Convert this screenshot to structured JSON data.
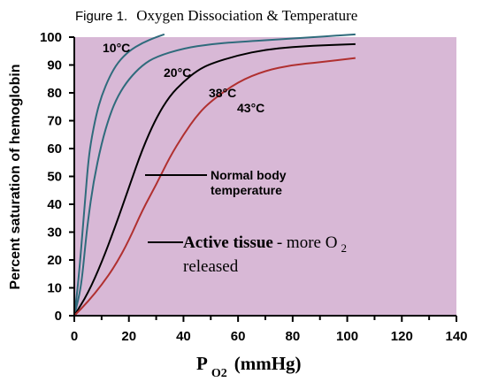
{
  "figure": {
    "title_prefix": "Figure 1.",
    "title_rest": "Oxygen Dissociation & Temperature"
  },
  "chart_data": {
    "type": "line",
    "title": "Figure 1. Oxygen Dissociation & Temperature",
    "ylabel": "Percent saturation of hemoglobin",
    "xlabel_main": "P",
    "xlabel_sub": "O2",
    "xlabel_suffix": "(mmHg)",
    "xlim": [
      0,
      140
    ],
    "ylim": [
      0,
      100
    ],
    "x_ticks": [
      0,
      20,
      40,
      60,
      80,
      100,
      120,
      140
    ],
    "y_ticks": [
      0,
      10,
      20,
      30,
      40,
      50,
      60,
      70,
      80,
      90,
      100
    ],
    "plot_background": "#d8b8d6",
    "grid": false,
    "legend": "none",
    "series": [
      {
        "name": "10°C",
        "color": "#2f6b7c",
        "x": [
          0,
          1,
          2,
          3,
          4,
          5,
          6,
          8,
          10,
          13,
          16,
          20,
          25,
          30,
          33
        ],
        "y": [
          0,
          8,
          18,
          30,
          42,
          54,
          62,
          72,
          79,
          86,
          91,
          95,
          98,
          100,
          101
        ]
      },
      {
        "name": "20°C",
        "color": "#2f6b7c",
        "x": [
          0,
          2,
          3,
          4,
          5,
          7,
          10,
          13,
          16,
          20,
          25,
          30,
          40,
          50,
          60,
          80,
          103
        ],
        "y": [
          0,
          8,
          15,
          25,
          34,
          48,
          62,
          72,
          79,
          85,
          90,
          93,
          96,
          97.5,
          98.3,
          99.5,
          101
        ]
      },
      {
        "name": "38°C",
        "color": "#000000",
        "x": [
          0,
          5,
          10,
          15,
          20,
          25,
          30,
          35,
          40,
          45,
          50,
          60,
          70,
          80,
          90,
          103
        ],
        "y": [
          0,
          8,
          19,
          32,
          46,
          60,
          71,
          79,
          84,
          88,
          90.5,
          93.5,
          95.5,
          96.5,
          97,
          97.5
        ]
      },
      {
        "name": "43°C",
        "color": "#b03030",
        "x": [
          0,
          5,
          10,
          15,
          20,
          25,
          30,
          35,
          40,
          45,
          50,
          60,
          70,
          80,
          90,
          103
        ],
        "y": [
          0,
          5,
          11,
          18,
          27,
          38,
          47,
          57,
          65,
          72,
          77,
          84,
          88,
          90,
          91,
          92.5
        ]
      }
    ],
    "annotations": [
      {
        "id": "normal",
        "text_line1": "Normal body",
        "text_line2": "temperature",
        "at": [
          24,
          52
        ]
      },
      {
        "id": "active",
        "bold": "Active tissue",
        "rest": " - more O",
        "sub": "2",
        "line2": "released",
        "at": [
          26,
          27
        ]
      }
    ]
  }
}
